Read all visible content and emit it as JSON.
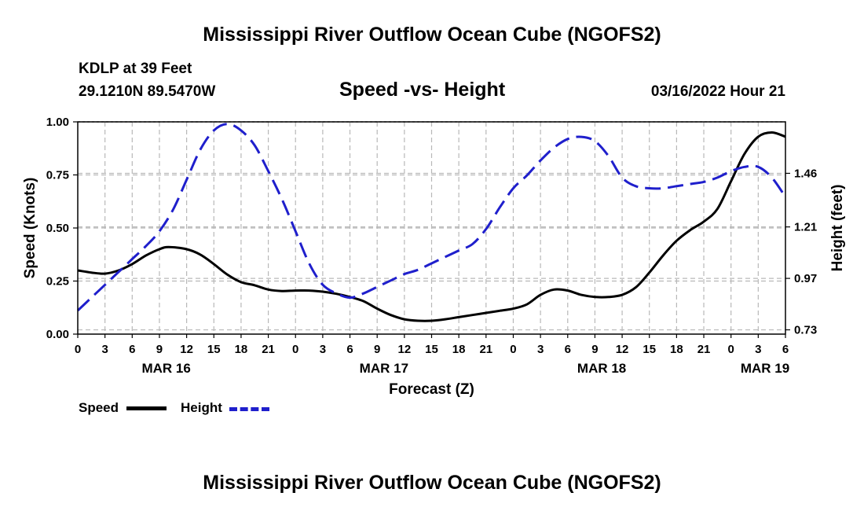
{
  "page": {
    "title": "Mississippi River Outflow Ocean Cube (NGOFS2)",
    "station": "KDLP at 39 Feet",
    "coordinates": "29.1210N  89.5470W",
    "subtitle": "Speed -vs- Height",
    "run_time": "03/16/2022 Hour 21",
    "bottom_title": "Mississippi River Outflow Ocean Cube (NGOFS2)"
  },
  "legend": {
    "speed_label": "Speed",
    "height_label": "Height"
  },
  "colors": {
    "speed": "#000000",
    "height": "#1f1fcc",
    "grid": "#b8b8b8"
  },
  "chart_data": {
    "type": "line",
    "title": "Speed -vs- Height",
    "xlabel": "Forecast (Z)",
    "ylabel": "Speed (Knots)",
    "y2label": "Height (feet)",
    "x_unit": "forecast hour from 03/16/2022 00Z",
    "xlim": [
      0,
      78
    ],
    "ylim": [
      0,
      1
    ],
    "y2lim": [
      0.71,
      1.7
    ],
    "x_ticks": [
      {
        "hour": 0,
        "label": "0"
      },
      {
        "hour": 3,
        "label": "3"
      },
      {
        "hour": 6,
        "label": "6"
      },
      {
        "hour": 9,
        "label": "9"
      },
      {
        "hour": 12,
        "label": "12"
      },
      {
        "hour": 15,
        "label": "15"
      },
      {
        "hour": 18,
        "label": "18"
      },
      {
        "hour": 21,
        "label": "21"
      },
      {
        "hour": 24,
        "label": "0"
      },
      {
        "hour": 27,
        "label": "3"
      },
      {
        "hour": 30,
        "label": "6"
      },
      {
        "hour": 33,
        "label": "9"
      },
      {
        "hour": 36,
        "label": "12"
      },
      {
        "hour": 39,
        "label": "15"
      },
      {
        "hour": 42,
        "label": "18"
      },
      {
        "hour": 45,
        "label": "21"
      },
      {
        "hour": 48,
        "label": "0"
      },
      {
        "hour": 51,
        "label": "3"
      },
      {
        "hour": 54,
        "label": "6"
      },
      {
        "hour": 57,
        "label": "9"
      },
      {
        "hour": 60,
        "label": "12"
      },
      {
        "hour": 63,
        "label": "15"
      },
      {
        "hour": 66,
        "label": "18"
      },
      {
        "hour": 69,
        "label": "21"
      },
      {
        "hour": 72,
        "label": "0"
      },
      {
        "hour": 75,
        "label": "3"
      },
      {
        "hour": 78,
        "label": "6"
      }
    ],
    "day_labels": [
      {
        "hour": 9.75,
        "label": "MAR 16"
      },
      {
        "hour": 33.75,
        "label": "MAR 17"
      },
      {
        "hour": 57.75,
        "label": "MAR 18"
      },
      {
        "hour": 75.75,
        "label": "MAR 19"
      }
    ],
    "y_ticks": [
      0.0,
      0.25,
      0.5,
      0.75,
      1.0
    ],
    "y_tick_labels": [
      "0.00",
      "0.25",
      "0.50",
      "0.75",
      "1.00"
    ],
    "y2_ticks": [
      0.73,
      0.97,
      1.21,
      1.46
    ],
    "y2_tick_labels": [
      "0.73",
      "0.97",
      "1.21",
      "1.46"
    ],
    "series": [
      {
        "name": "Speed",
        "axis": "left",
        "style": "solid",
        "points": [
          [
            0,
            0.3
          ],
          [
            1.5,
            0.29
          ],
          [
            3,
            0.285
          ],
          [
            4.5,
            0.3
          ],
          [
            6,
            0.33
          ],
          [
            7.5,
            0.37
          ],
          [
            9,
            0.4
          ],
          [
            10,
            0.41
          ],
          [
            12,
            0.4
          ],
          [
            13.5,
            0.375
          ],
          [
            15,
            0.33
          ],
          [
            16.5,
            0.28
          ],
          [
            18,
            0.245
          ],
          [
            19.5,
            0.23
          ],
          [
            21,
            0.21
          ],
          [
            22.5,
            0.203
          ],
          [
            24,
            0.205
          ],
          [
            25.5,
            0.205
          ],
          [
            27,
            0.2
          ],
          [
            28.5,
            0.19
          ],
          [
            30,
            0.175
          ],
          [
            31.5,
            0.155
          ],
          [
            33,
            0.12
          ],
          [
            34.5,
            0.09
          ],
          [
            36,
            0.07
          ],
          [
            37.5,
            0.063
          ],
          [
            39,
            0.063
          ],
          [
            40.5,
            0.07
          ],
          [
            42,
            0.08
          ],
          [
            43.5,
            0.09
          ],
          [
            45,
            0.1
          ],
          [
            46.5,
            0.11
          ],
          [
            48,
            0.12
          ],
          [
            49.5,
            0.14
          ],
          [
            51,
            0.185
          ],
          [
            52.5,
            0.21
          ],
          [
            54,
            0.205
          ],
          [
            55.5,
            0.185
          ],
          [
            57,
            0.175
          ],
          [
            58.5,
            0.175
          ],
          [
            60,
            0.185
          ],
          [
            61.5,
            0.22
          ],
          [
            63,
            0.29
          ],
          [
            64.5,
            0.37
          ],
          [
            66,
            0.44
          ],
          [
            67.5,
            0.49
          ],
          [
            69,
            0.53
          ],
          [
            70.5,
            0.59
          ],
          [
            72,
            0.72
          ],
          [
            73.5,
            0.85
          ],
          [
            75,
            0.93
          ],
          [
            76.5,
            0.95
          ],
          [
            78,
            0.93
          ]
        ]
      },
      {
        "name": "Height",
        "axis": "right",
        "style": "dashed",
        "points": [
          [
            0,
            0.82
          ],
          [
            1.5,
            0.88
          ],
          [
            3,
            0.94
          ],
          [
            4.5,
            1.0
          ],
          [
            6,
            1.06
          ],
          [
            7.5,
            1.12
          ],
          [
            9,
            1.19
          ],
          [
            10.5,
            1.29
          ],
          [
            12,
            1.43
          ],
          [
            13.5,
            1.57
          ],
          [
            15,
            1.66
          ],
          [
            16.5,
            1.69
          ],
          [
            18,
            1.66
          ],
          [
            19.5,
            1.59
          ],
          [
            21,
            1.47
          ],
          [
            22.5,
            1.34
          ],
          [
            24,
            1.19
          ],
          [
            25.5,
            1.04
          ],
          [
            27,
            0.94
          ],
          [
            28.5,
            0.9
          ],
          [
            30,
            0.88
          ],
          [
            31.5,
            0.9
          ],
          [
            33,
            0.93
          ],
          [
            34.5,
            0.96
          ],
          [
            36,
            0.99
          ],
          [
            37.5,
            1.01
          ],
          [
            39,
            1.04
          ],
          [
            40.5,
            1.07
          ],
          [
            42,
            1.1
          ],
          [
            43.5,
            1.13
          ],
          [
            45,
            1.2
          ],
          [
            46.5,
            1.3
          ],
          [
            48,
            1.39
          ],
          [
            49.5,
            1.45
          ],
          [
            51,
            1.52
          ],
          [
            52.5,
            1.58
          ],
          [
            54,
            1.62
          ],
          [
            55.5,
            1.63
          ],
          [
            57,
            1.61
          ],
          [
            58.5,
            1.54
          ],
          [
            60,
            1.44
          ],
          [
            61.5,
            1.4
          ],
          [
            63,
            1.39
          ],
          [
            64.5,
            1.39
          ],
          [
            66,
            1.4
          ],
          [
            67.5,
            1.41
          ],
          [
            69,
            1.42
          ],
          [
            70.5,
            1.44
          ],
          [
            72,
            1.47
          ],
          [
            73.5,
            1.49
          ],
          [
            75,
            1.49
          ],
          [
            76.5,
            1.44
          ],
          [
            78,
            1.35
          ]
        ]
      }
    ]
  }
}
